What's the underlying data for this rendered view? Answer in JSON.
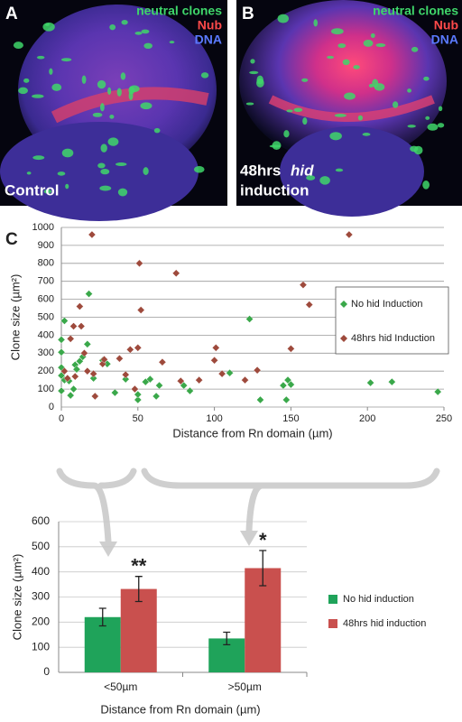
{
  "panels": [
    {
      "label": "A",
      "overlay": [
        "neutral clones",
        "Nub",
        "DNA"
      ],
      "caption": [
        "Control"
      ]
    },
    {
      "label": "B",
      "overlay": [
        "neutral clones",
        "Nub",
        "DNA"
      ],
      "caption": [
        "48hrs",
        "hid",
        "induction"
      ]
    }
  ],
  "chart_data": [
    {
      "type": "scatter",
      "panel_label": "C",
      "x_label": "Distance from Rn domain (µm)",
      "y_label": "Clone size (µm²)",
      "xlim": [
        0,
        250
      ],
      "xticks": [
        0,
        50,
        100,
        150,
        200,
        250
      ],
      "ylim": [
        0,
        1000
      ],
      "yticks": [
        0,
        100,
        200,
        300,
        400,
        500,
        600,
        700,
        800,
        900,
        1000
      ],
      "grid": true,
      "legend": "right",
      "series": [
        {
          "name": "No hid Induction",
          "color": "#3aa84a",
          "x": [
            0,
            0,
            0,
            0,
            0,
            2,
            2,
            5,
            6,
            8,
            9,
            10,
            12,
            14,
            17,
            18,
            21,
            27,
            30,
            35,
            42,
            50,
            50,
            55,
            58,
            62,
            64,
            80,
            84,
            110,
            123,
            130,
            145,
            147,
            148,
            150,
            202,
            216,
            246
          ],
          "values": [
            90,
            175,
            220,
            305,
            375,
            480,
            150,
            145,
            65,
            100,
            235,
            210,
            255,
            280,
            350,
            630,
            160,
            260,
            240,
            80,
            155,
            40,
            70,
            140,
            155,
            60,
            120,
            120,
            90,
            190,
            490,
            40,
            120,
            40,
            150,
            125,
            135,
            140,
            85
          ]
        },
        {
          "name": "48hrs hid Induction",
          "color": "#9e4a3c",
          "x": [
            2,
            4,
            6,
            8,
            9,
            12,
            13,
            15,
            17,
            20,
            21,
            22,
            27,
            28,
            38,
            42,
            45,
            48,
            50,
            51,
            52,
            66,
            75,
            78,
            90,
            100,
            101,
            105,
            120,
            128,
            150,
            158,
            162,
            188
          ],
          "values": [
            200,
            160,
            380,
            450,
            170,
            560,
            450,
            300,
            200,
            960,
            185,
            60,
            240,
            265,
            270,
            180,
            320,
            100,
            330,
            800,
            540,
            250,
            745,
            145,
            150,
            260,
            330,
            185,
            150,
            205,
            325,
            680,
            570,
            960
          ]
        }
      ]
    },
    {
      "type": "bar",
      "x_label": "Distance from Rn domain (µm)",
      "y_label": "Clone size (µm²)",
      "categories": [
        "<50µm",
        ">50µm"
      ],
      "ylim": [
        0,
        600
      ],
      "yticks": [
        0,
        100,
        200,
        300,
        400,
        500,
        600
      ],
      "grid": true,
      "legend": "right",
      "series": [
        {
          "name": "No hid induction",
          "color": "#1fa35a",
          "values": [
            220,
            135
          ],
          "errors": [
            35,
            25
          ]
        },
        {
          "name": "48hrs hid induction",
          "color": "#c9504e",
          "values": [
            332,
            415
          ],
          "errors": [
            50,
            70
          ],
          "significance": [
            "**",
            "*"
          ]
        }
      ]
    }
  ]
}
